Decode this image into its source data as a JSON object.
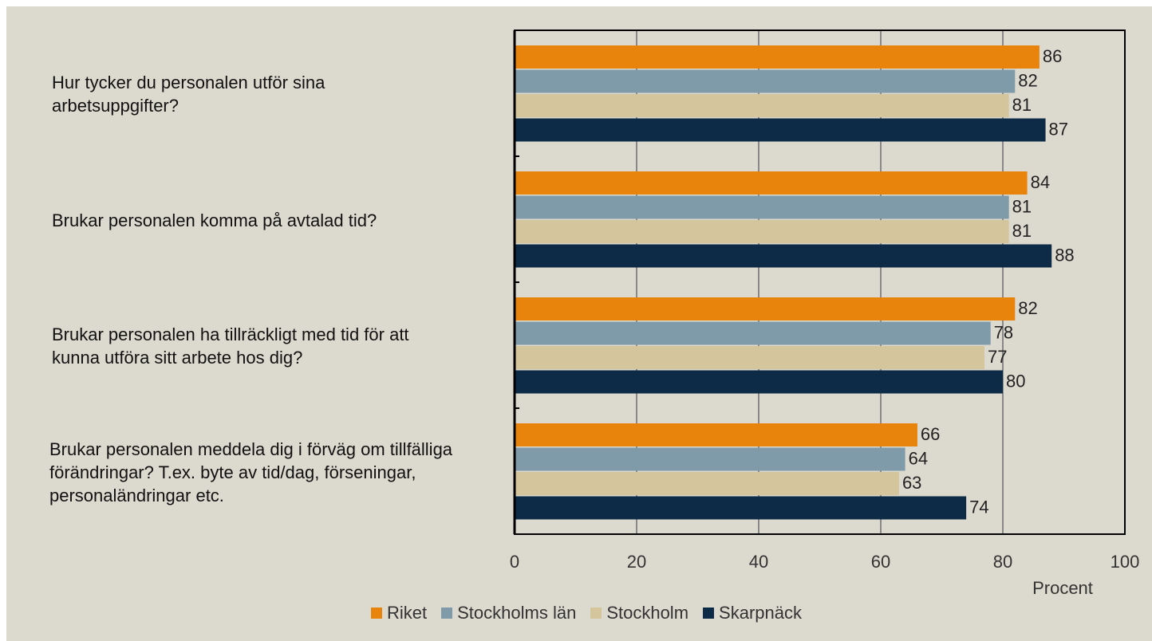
{
  "chart_data": {
    "type": "bar",
    "orientation": "horizontal",
    "categories": [
      "Hur tycker du personalen utför sina arbetsuppgifter?",
      "Brukar personalen komma på avtalad tid?",
      "Brukar personalen ha tillräckligt med tid för att kunna utföra sitt arbete hos dig?",
      "Brukar personalen meddela dig i förväg om tillfälliga förändringar? T.ex. byte av tid/dag, förseningar, personaländringar etc."
    ],
    "series": [
      {
        "name": "Riket",
        "color": "#e8830c",
        "values": [
          86,
          84,
          82,
          66
        ]
      },
      {
        "name": "Stockholms län",
        "color": "#7f9aa8",
        "values": [
          82,
          81,
          78,
          64
        ]
      },
      {
        "name": "Stockholm",
        "color": "#d5c59d",
        "values": [
          81,
          81,
          77,
          63
        ]
      },
      {
        "name": "Skarpnäck",
        "color": "#0d2a47",
        "values": [
          87,
          88,
          80,
          74
        ]
      }
    ],
    "xlabel": "Procent",
    "xlim": [
      0,
      100
    ],
    "xticks": [
      0,
      20,
      40,
      60,
      80,
      100
    ],
    "grid": true,
    "legend": "bottom"
  }
}
